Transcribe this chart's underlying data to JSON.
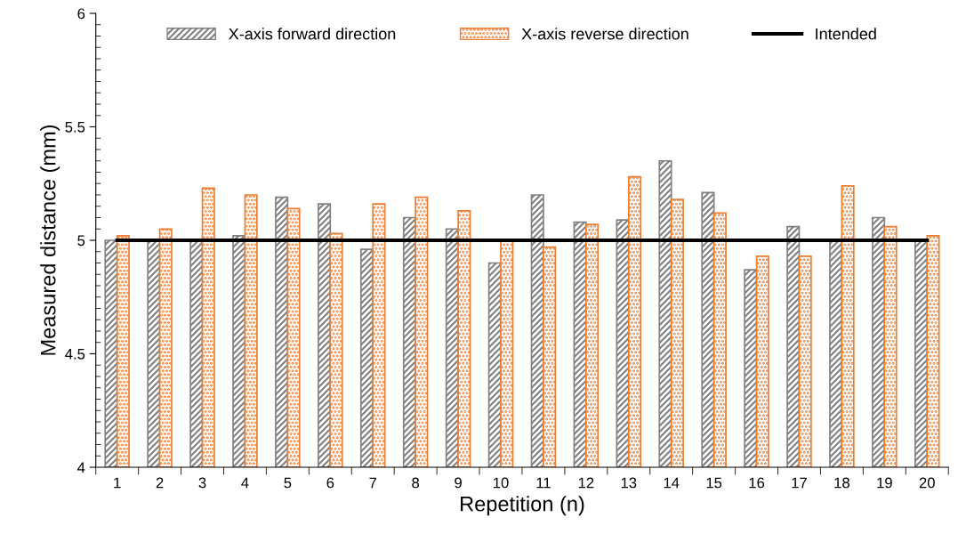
{
  "chart_data": {
    "type": "bar",
    "xlabel": "Repetition (n)",
    "ylabel": "Measured distance (mm)",
    "categories": [
      "1",
      "2",
      "3",
      "4",
      "5",
      "6",
      "7",
      "8",
      "9",
      "10",
      "11",
      "12",
      "13",
      "14",
      "15",
      "16",
      "17",
      "18",
      "19",
      "20"
    ],
    "series": [
      {
        "name": "X-axis forward direction",
        "color": "#808080",
        "values": [
          5.0,
          5.0,
          5.0,
          5.02,
          5.19,
          5.16,
          4.96,
          5.1,
          5.05,
          4.9,
          5.2,
          5.08,
          5.09,
          5.35,
          5.21,
          4.87,
          5.06,
          5.0,
          5.1,
          5.0
        ]
      },
      {
        "name": "X-axis reverse direction",
        "color": "#ed7d31",
        "values": [
          5.02,
          5.05,
          5.23,
          5.2,
          5.14,
          5.03,
          5.16,
          5.19,
          5.13,
          5.0,
          4.97,
          5.07,
          5.28,
          5.18,
          5.12,
          4.93,
          4.93,
          5.24,
          5.06,
          5.02
        ]
      },
      {
        "name": "Intended",
        "type": "line",
        "color": "#000000",
        "values": [
          5,
          5,
          5,
          5,
          5,
          5,
          5,
          5,
          5,
          5,
          5,
          5,
          5,
          5,
          5,
          5,
          5,
          5,
          5,
          5
        ]
      }
    ],
    "ylim": [
      4,
      6
    ],
    "yticks": [
      4,
      4.5,
      5,
      5.5,
      6
    ],
    "grid": false,
    "legend": "top"
  }
}
